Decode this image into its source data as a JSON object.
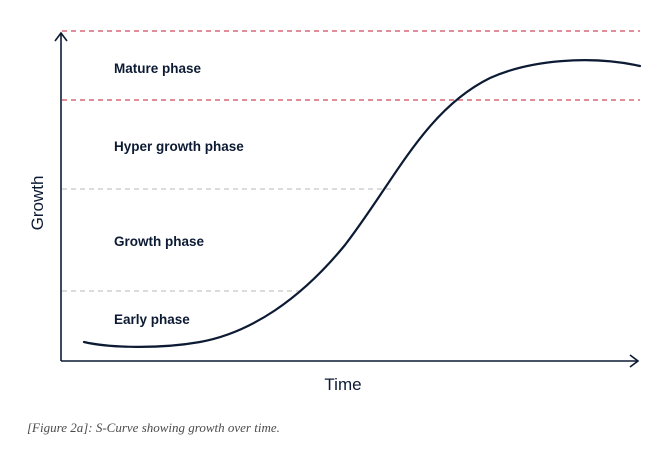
{
  "diagram": {
    "x_axis_label": "Time",
    "y_axis_label": "Growth",
    "phases": [
      {
        "label": "Mature phase"
      },
      {
        "label": "Hyper growth phase"
      },
      {
        "label": "Growth phase"
      },
      {
        "label": "Early phase"
      }
    ],
    "colors": {
      "curve": "#0c1b33",
      "axis": "#0c1b33",
      "mature_boundary": "#d14b5a",
      "phase_boundary": "#c8c8c8"
    }
  },
  "caption": "[Figure 2a]: S-Curve showing growth over time."
}
